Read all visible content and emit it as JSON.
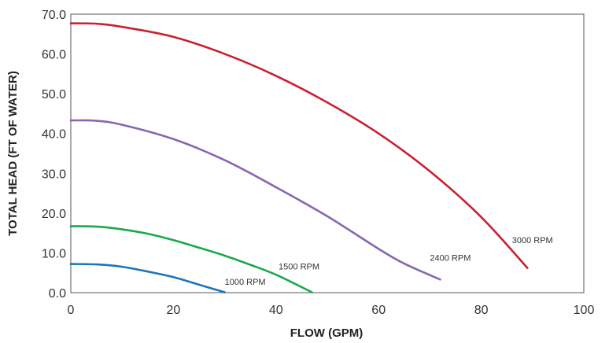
{
  "chart_data": {
    "type": "line",
    "title": "",
    "xlabel": "FLOW (GPM)",
    "ylabel": "TOTAL HEAD (FT OF WATER)",
    "xlim": [
      0,
      100
    ],
    "ylim": [
      0,
      70
    ],
    "xticks": [
      0,
      20,
      40,
      60,
      80,
      100
    ],
    "xtick_labels": [
      "0",
      "20",
      "40",
      "60",
      "80",
      "100"
    ],
    "yticks": [
      0,
      10,
      20,
      30,
      40,
      50,
      60,
      70
    ],
    "ytick_labels": [
      "0.0",
      "10.0",
      "20.0",
      "30.0",
      "40.0",
      "50.0",
      "60.0",
      "70.0"
    ],
    "grid": false,
    "series": [
      {
        "name": "1000 RPM",
        "color": "#1b75bb",
        "x": [
          0,
          5,
          10,
          15,
          20,
          25,
          30
        ],
        "y": [
          7.2,
          7.1,
          6.5,
          5.3,
          3.9,
          2.0,
          0.1
        ],
        "label_at": [
          30,
          2.0
        ]
      },
      {
        "name": "1500 RPM",
        "color": "#1aa84d",
        "x": [
          0,
          5,
          10,
          15,
          20,
          25,
          30,
          35,
          40,
          47
        ],
        "y": [
          16.7,
          16.6,
          15.9,
          14.8,
          13.2,
          11.3,
          9.3,
          7.0,
          4.5,
          0.1
        ],
        "label_at": [
          40.5,
          5.8
        ]
      },
      {
        "name": "2400 RPM",
        "color": "#8866b0",
        "x": [
          0,
          5,
          10,
          20,
          30,
          40,
          50,
          60,
          65,
          72
        ],
        "y": [
          43.3,
          43.2,
          42.2,
          38.6,
          33.3,
          26.5,
          19.2,
          11.0,
          7.3,
          3.3
        ],
        "label_at": [
          70,
          8.0
        ]
      },
      {
        "name": "3000 RPM",
        "color": "#c92032",
        "x": [
          0,
          5,
          10,
          20,
          30,
          40,
          50,
          60,
          70,
          80,
          89
        ],
        "y": [
          67.7,
          67.6,
          66.8,
          64.3,
          60.0,
          54.5,
          47.8,
          40.0,
          30.5,
          19.0,
          6.2
        ],
        "label_at": [
          86,
          12.5
        ]
      }
    ]
  }
}
